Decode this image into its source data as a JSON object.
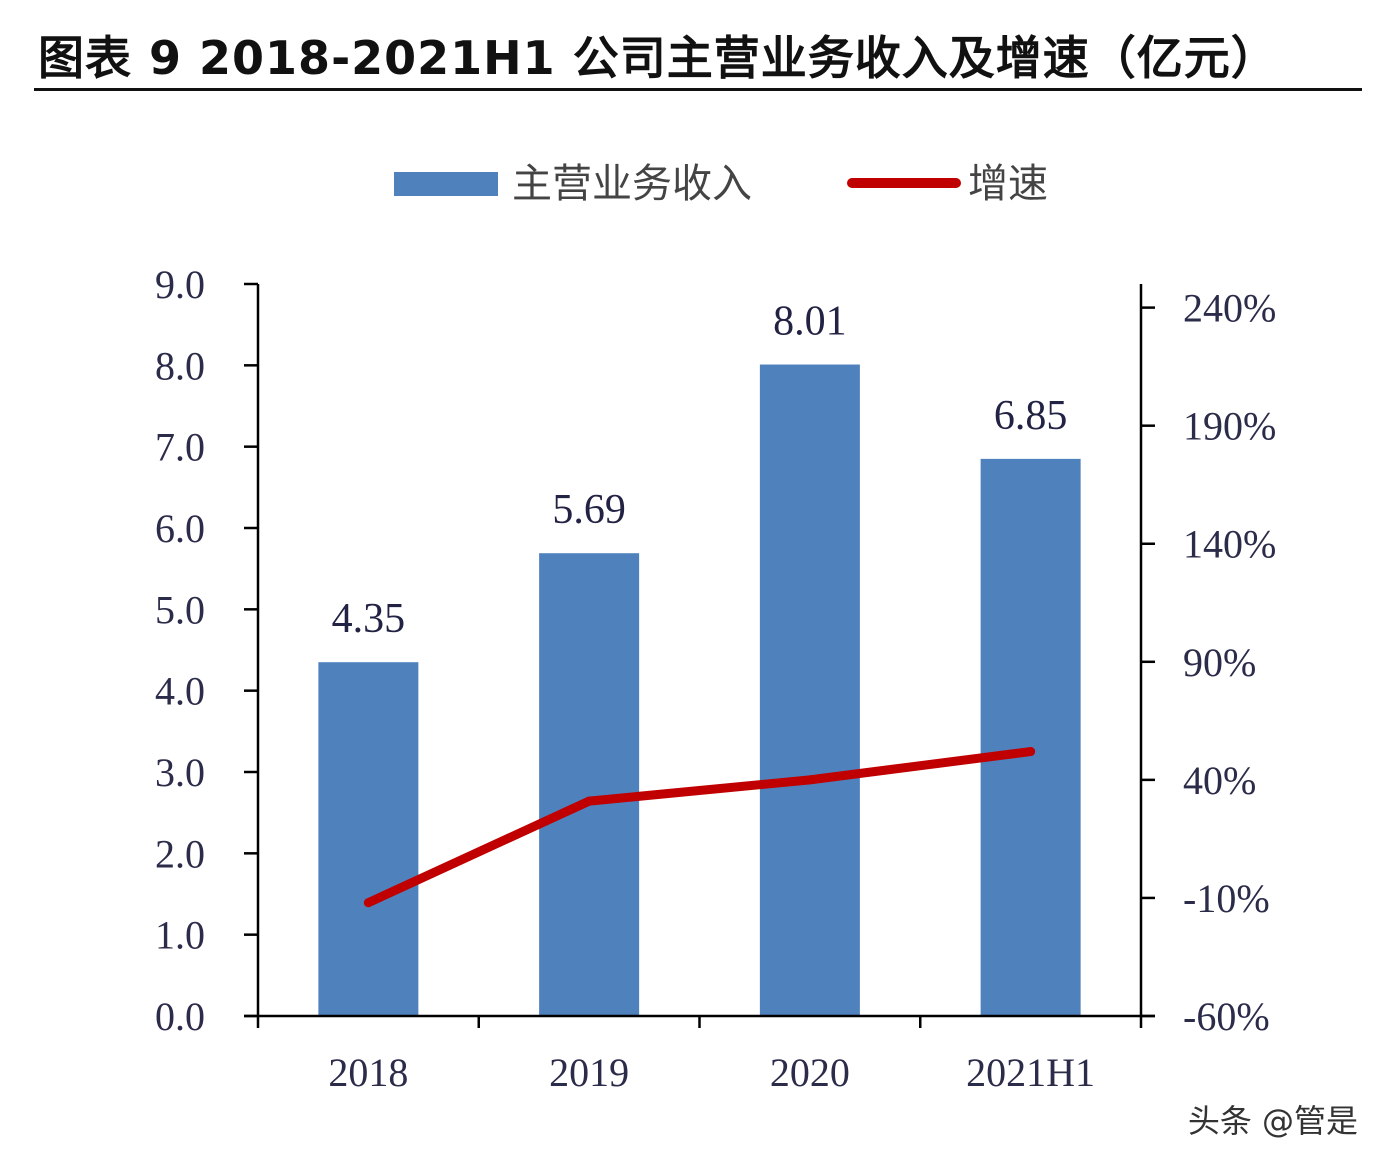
{
  "title": "图表 9  2018-2021H1 公司主营业务收入及增速（亿元）",
  "watermark": "头条 @管是",
  "colors": {
    "bar": "#4f81bd",
    "line": "#c00000",
    "axis": "#000000"
  },
  "chart_data": {
    "type": "bar+line",
    "title": "图表 9  2018-2021H1 公司主营业务收入及增速（亿元）",
    "categories": [
      "2018",
      "2019",
      "2020",
      "2021H1"
    ],
    "series": [
      {
        "name": "主营业务收入",
        "type": "bar",
        "axis": "left",
        "values": [
          4.35,
          5.69,
          8.01,
          6.85
        ],
        "labels": [
          "4.35",
          "5.69",
          "8.01",
          "6.85"
        ]
      },
      {
        "name": "增速",
        "type": "line",
        "axis": "right",
        "values": [
          -12,
          31,
          40,
          52
        ]
      }
    ],
    "left_axis": {
      "min": 0,
      "max": 9,
      "ticks": [
        "0.0",
        "1.0",
        "2.0",
        "3.0",
        "4.0",
        "5.0",
        "6.0",
        "7.0",
        "8.0",
        "9.0"
      ]
    },
    "right_axis": {
      "min": -60,
      "max": 250,
      "tick_values": [
        -60,
        -10,
        40,
        90,
        140,
        190,
        240
      ],
      "ticks": [
        "-60%",
        "-10%",
        "40%",
        "90%",
        "140%",
        "190%",
        "240%"
      ]
    },
    "legend": {
      "position": "top-center",
      "entries": [
        "主营业务收入",
        "增速"
      ]
    },
    "grid": false
  }
}
